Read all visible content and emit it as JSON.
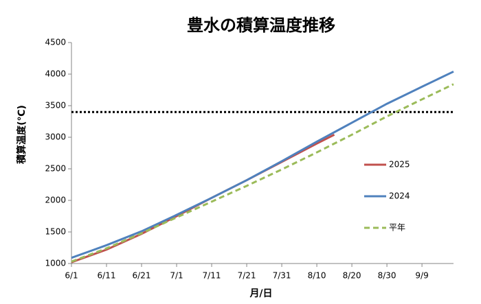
{
  "chart_data": {
    "type": "line",
    "title": "豊水の積算温度推移",
    "x_label": "月/日",
    "y_label": "積算温度(℃)",
    "xlim": [
      0,
      109
    ],
    "xticks": [
      {
        "value": 0,
        "label": "6/1"
      },
      {
        "value": 10,
        "label": "6/11"
      },
      {
        "value": 20,
        "label": "6/21"
      },
      {
        "value": 30,
        "label": "7/1"
      },
      {
        "value": 40,
        "label": "7/11"
      },
      {
        "value": 50,
        "label": "7/21"
      },
      {
        "value": 60,
        "label": "7/31"
      },
      {
        "value": 70,
        "label": "8/10"
      },
      {
        "value": 80,
        "label": "8/20"
      },
      {
        "value": 90,
        "label": "8/30"
      },
      {
        "value": 100,
        "label": "9/9"
      }
    ],
    "ylim": [
      1000,
      4500
    ],
    "yticks": [
      1000,
      1500,
      2000,
      2500,
      3000,
      3500,
      4000,
      4500
    ],
    "reference_line": {
      "value": 3400,
      "color": "#000000"
    },
    "series": [
      {
        "name": "2025",
        "color": "#c0504d",
        "dash": false,
        "x": [
          0,
          10,
          20,
          30,
          40,
          50,
          60,
          70,
          75
        ],
        "values": [
          1020,
          1220,
          1470,
          1750,
          2040,
          2320,
          2610,
          2900,
          3040
        ]
      },
      {
        "name": "2024",
        "color": "#4f81bd",
        "dash": false,
        "x": [
          0,
          10,
          20,
          30,
          40,
          50,
          60,
          70,
          80,
          90,
          100,
          109
        ],
        "values": [
          1090,
          1290,
          1510,
          1770,
          2040,
          2320,
          2620,
          2930,
          3230,
          3530,
          3800,
          4040
        ]
      },
      {
        "name": "平年",
        "color": "#9bbb59",
        "dash": true,
        "x": [
          0,
          10,
          20,
          30,
          40,
          50,
          60,
          70,
          80,
          90,
          100,
          109
        ],
        "values": [
          1030,
          1240,
          1480,
          1730,
          1980,
          2230,
          2490,
          2760,
          3040,
          3330,
          3600,
          3840
        ]
      }
    ]
  }
}
